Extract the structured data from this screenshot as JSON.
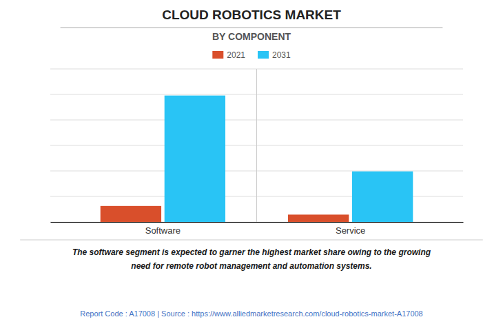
{
  "chart_data": {
    "type": "bar",
    "title": "CLOUD ROBOTICS MARKET",
    "subtitle": "BY COMPONENT",
    "categories": [
      "Software",
      "Service"
    ],
    "series": [
      {
        "name": "2021",
        "color": "#D94F2B",
        "values": [
          1.2,
          0.55
        ]
      },
      {
        "name": "2031",
        "color": "#29C4F5",
        "values": [
          9.5,
          3.8
        ]
      }
    ],
    "ylim": [
      0,
      11.5
    ],
    "yticks": [
      0,
      1.9166666666666667,
      3.8333333333333335,
      5.75,
      7.666666666666667,
      9.583333333333334,
      11.5
    ],
    "grid": true,
    "tick_labels": "x",
    "legend": "top",
    "annotations": [
      "The software segment is expected to garner the highest market share owing to the growing\nneed for remote robot management and automation systems.",
      "Report Code : A17008  |  Source : https://www.alliedmarketresearch.com/cloud-robotics-market-A17008"
    ]
  }
}
